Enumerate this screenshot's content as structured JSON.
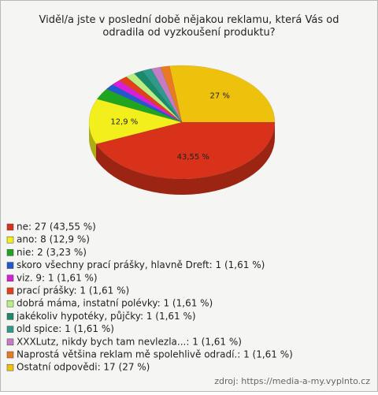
{
  "chart_data": {
    "type": "pie",
    "title": "Viděl/a jste v poslední době nějakou reklamu, která Vás od odradila od vyzkoušení produktu?",
    "categories": [
      "ne: 27 (43,55 %)",
      "ano: 8 (12,9 %)",
      "nie: 2 (3,23 %)",
      "skoro všechny prací prášky, hlavně Dreft: 1 (1,61 %)",
      "viz. 9: 1 (1,61 %)",
      "prací prášky: 1 (1,61 %)",
      "dobrá máma, instatní polévky: 1 (1,61 %)",
      "jakékoliv hypotéky, půjčky: 1 (1,61 %)",
      "old spice: 1 (1,61 %)",
      "XXXLutz, nikdy bych tam nevlezla...: 1 (1,61 %)",
      "Naprostá většina reklam mě spolehlivě odradí.: 1 (1,61 %)",
      "Ostatní odpovědi: 17 (27 %)"
    ],
    "values": [
      43.55,
      12.9,
      3.23,
      1.61,
      1.61,
      1.61,
      1.61,
      1.61,
      1.61,
      1.61,
      1.61,
      27
    ],
    "value_labels": [
      "43,55 %",
      "12,9 %",
      null,
      null,
      null,
      null,
      null,
      null,
      null,
      null,
      null,
      "27 %"
    ],
    "colors": [
      "#d8321a",
      "#f2ef1c",
      "#1fa51f",
      "#2458d0",
      "#d81ed8",
      "#e2401c",
      "#b9ee82",
      "#1a8a6a",
      "#2f9a8c",
      "#c47cc4",
      "#ea7a22",
      "#eec20c"
    ],
    "source": "zdroj: https://media-a-my.vyplnto.cz"
  }
}
